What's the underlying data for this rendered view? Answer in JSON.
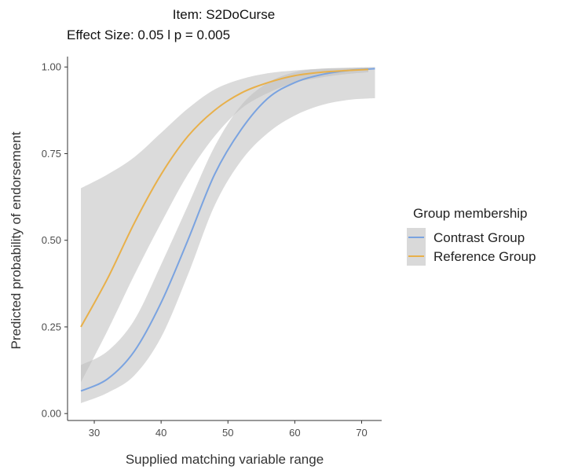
{
  "chart_data": {
    "type": "line",
    "title": "Item:  S2DoCurse",
    "subtitle": "Effect Size:  0.05  l p =  0.005",
    "xlabel": "Supplied matching variable range",
    "ylabel": "Predicted probability of endorsement",
    "xlim": [
      26,
      73
    ],
    "ylim": [
      -0.02,
      1.03
    ],
    "x_ticks": [
      30,
      40,
      50,
      60,
      70
    ],
    "x_tick_labels": [
      "30",
      "40",
      "50",
      "60",
      "70"
    ],
    "y_ticks": [
      0,
      0.25,
      0.5,
      0.75,
      1.0
    ],
    "y_tick_labels": [
      "0.00",
      "0.25",
      "0.50",
      "0.75",
      "1.00"
    ],
    "grid": false,
    "legend": {
      "title": "Group membership",
      "position": "right",
      "entries": [
        "Contrast Group",
        "Reference Group"
      ]
    },
    "series": [
      {
        "name": "Contrast Group",
        "color": "#7aa3e0",
        "x": [
          28,
          32,
          36,
          40,
          44,
          48,
          52,
          56,
          60,
          64,
          68,
          72
        ],
        "y": [
          0.065,
          0.1,
          0.18,
          0.32,
          0.5,
          0.69,
          0.82,
          0.91,
          0.955,
          0.978,
          0.99,
          0.995
        ],
        "ci_lower": [
          0.03,
          0.06,
          0.11,
          0.22,
          0.4,
          0.6,
          0.73,
          0.81,
          0.86,
          0.89,
          0.905,
          0.91
        ],
        "ci_upper": [
          0.14,
          0.18,
          0.27,
          0.43,
          0.6,
          0.77,
          0.89,
          0.955,
          0.985,
          0.995,
          0.998,
          1.0
        ]
      },
      {
        "name": "Reference Group",
        "color": "#e8b04a",
        "x": [
          28,
          32,
          36,
          40,
          44,
          48,
          52,
          56,
          60,
          64,
          68,
          71
        ],
        "y": [
          0.25,
          0.39,
          0.55,
          0.69,
          0.8,
          0.875,
          0.925,
          0.955,
          0.975,
          0.985,
          0.99,
          0.993
        ],
        "ci_lower": [
          0.09,
          0.24,
          0.4,
          0.55,
          0.69,
          0.8,
          0.88,
          0.925,
          0.955,
          0.97,
          0.98,
          0.985
        ],
        "ci_upper": [
          0.65,
          0.69,
          0.74,
          0.81,
          0.88,
          0.935,
          0.965,
          0.982,
          0.99,
          0.995,
          0.997,
          0.998
        ]
      }
    ]
  },
  "colors": {
    "ci_fill": "#bdbdbd",
    "axis": "#333333",
    "legend_key_bg": "#d9d9d9"
  }
}
